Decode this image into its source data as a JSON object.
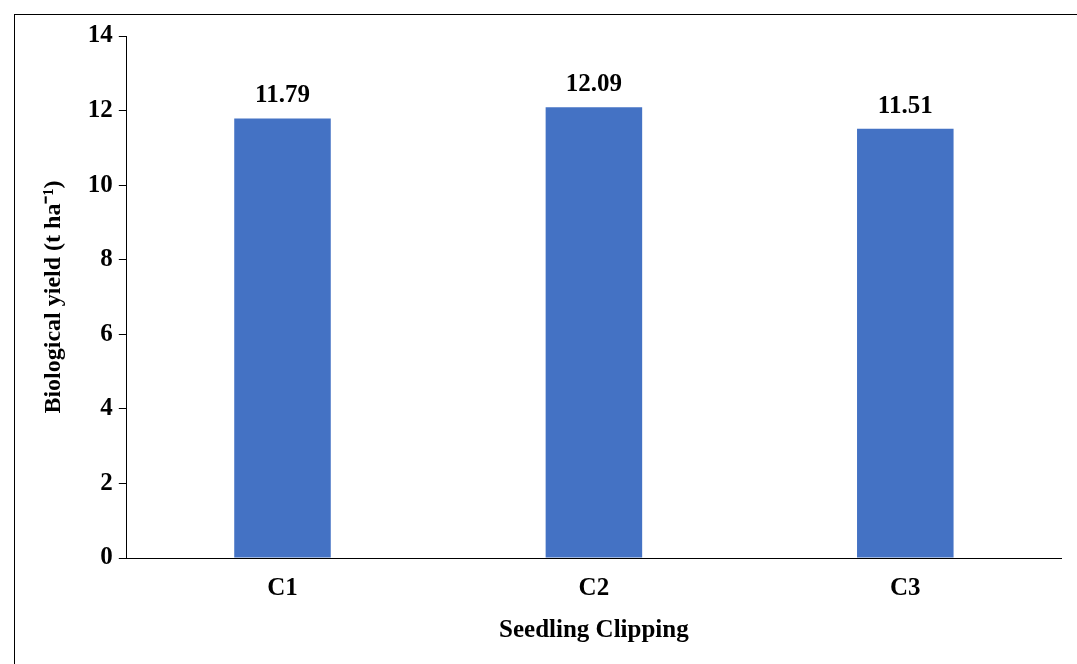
{
  "chart_data": {
    "type": "bar",
    "xlabel": "Seedling Clipping",
    "ylabel": "Biological yield (t ha⁻¹)",
    "categories": [
      "C1",
      "C2",
      "C3"
    ],
    "values": [
      11.79,
      12.09,
      11.51
    ],
    "color": "#4472c4",
    "ylim": [
      0,
      14
    ],
    "yticks": [
      0,
      2,
      4,
      6,
      8,
      10,
      12,
      14
    ],
    "grid": false,
    "legend": false,
    "data_labels": true
  }
}
